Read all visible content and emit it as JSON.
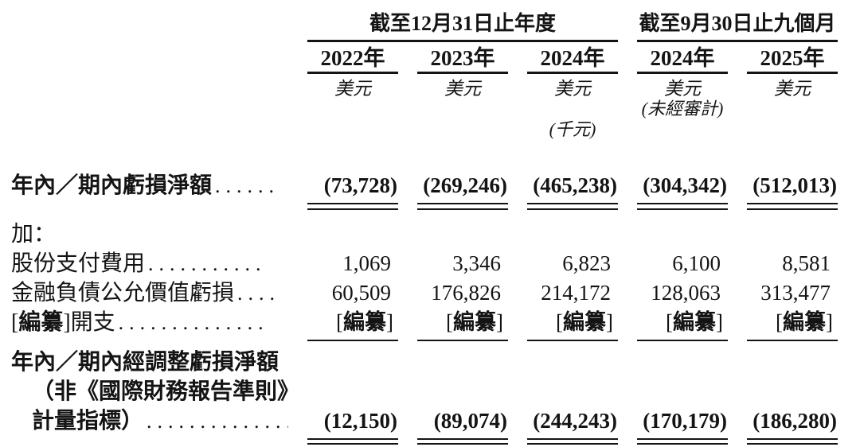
{
  "page": {
    "background": "#ffffff",
    "text_color": "#141414"
  },
  "header": {
    "groups": [
      {
        "label": "截至12月31日止年度",
        "span": 3
      },
      {
        "label": "截至9月30日止九個月",
        "span": 2
      }
    ],
    "columns": [
      {
        "year": "2022年",
        "unit": "美元"
      },
      {
        "year": "2023年",
        "unit": "美元"
      },
      {
        "year": "2024年",
        "unit": "美元",
        "scale_note": "(千元)"
      },
      {
        "year": "2024年",
        "unit": "美元",
        "audit_note": "(未經審計)"
      },
      {
        "year": "2025年",
        "unit": "美元"
      }
    ]
  },
  "rows": [
    {
      "name": "net-loss-for-year-period",
      "label_lines": [
        [
          {
            "t": "年內／期內虧損淨額",
            "b": true
          }
        ]
      ],
      "dots": "......",
      "values": [
        "(73,728)",
        "(269,246)",
        "(465,238)",
        "(304,342)",
        "(512,013)"
      ],
      "values_bold": true,
      "rule": "double",
      "spacing_after": 12
    },
    {
      "name": "add-label",
      "label_lines": [
        [
          {
            "t": "加：",
            "b": false
          }
        ]
      ],
      "values": []
    },
    {
      "name": "share-based-payment-expenses",
      "label_lines": [
        [
          {
            "t": "股份支付費用",
            "b": false
          }
        ]
      ],
      "dots": "...........",
      "values": [
        "1,069",
        "3,346",
        "6,823",
        "6,100",
        "8,581"
      ]
    },
    {
      "name": "fair-value-loss-financial-liabilities",
      "label_lines": [
        [
          {
            "t": "金融負債公允價值虧損",
            "b": false
          }
        ]
      ],
      "dots": "....",
      "values": [
        "60,509",
        "176,826",
        "214,172",
        "128,063",
        "313,477"
      ]
    },
    {
      "name": "redacted-expenses",
      "label_lines": [
        [
          {
            "t": "[",
            "b": false
          },
          {
            "t": "編纂",
            "b": true
          },
          {
            "t": "]開支",
            "b": false
          }
        ]
      ],
      "dots": "..............",
      "values": [
        "[編纂]",
        "[編纂]",
        "[編纂]",
        "[編纂]",
        "[編纂]"
      ],
      "values_redacted": true,
      "rule": "single",
      "spacing_after": 8
    },
    {
      "name": "adjusted-net-loss-non-ifrs",
      "label_lines": [
        [
          {
            "t": "年內／期內經調整虧損淨額",
            "b": true
          }
        ],
        [
          {
            "t": "（非《國際財務報告準則》",
            "b": true,
            "indent": 1
          }
        ],
        [
          {
            "t": "計量指標）",
            "b": true,
            "indent": 1
          }
        ]
      ],
      "dots": "..............",
      "values": [
        "(12,150)",
        "(89,074)",
        "(244,243)",
        "(170,179)",
        "(186,280)"
      ],
      "values_bold": true,
      "rule": "double"
    }
  ]
}
